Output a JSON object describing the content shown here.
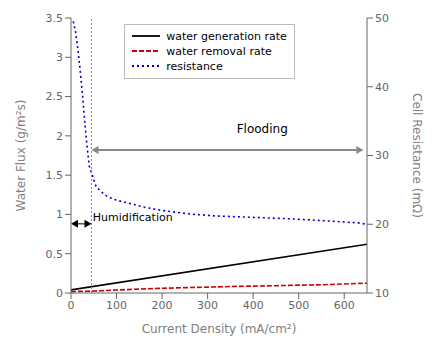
{
  "chart_data": {
    "type": "line",
    "xlabel": "Current Density (mA/cm²)",
    "ylabel": "Water Flux (g/m²s)",
    "y2label": "Cell Resistance (mΩ)",
    "xlim": [
      0,
      650
    ],
    "xticks": [
      0,
      100,
      200,
      300,
      400,
      500,
      600
    ],
    "ylim": [
      0,
      3.5
    ],
    "yticks": [
      0,
      0.5,
      1,
      1.5,
      2,
      2.5,
      3,
      3.5
    ],
    "y2lim": [
      10,
      50
    ],
    "y2ticks": [
      10,
      20,
      30,
      40,
      50
    ],
    "legend": "upper left",
    "series": [
      {
        "name": "water generation rate",
        "color": "#000000",
        "line_style": "solid",
        "x": [
          0,
          650
        ],
        "values": [
          0.04,
          0.62
        ]
      },
      {
        "name": "water removal rate",
        "color": "#cc0000",
        "line_style": "dashed",
        "x": [
          0,
          50,
          100,
          150,
          200,
          250,
          300,
          350,
          400,
          450,
          500,
          550,
          600,
          650
        ],
        "values": [
          0.018,
          0.025,
          0.038,
          0.05,
          0.06,
          0.068,
          0.075,
          0.082,
          0.088,
          0.093,
          0.1,
          0.105,
          0.115,
          0.125
        ]
      },
      {
        "name": "resistance",
        "color": "#0000cc",
        "line_style": "dotted",
        "axis": "y2",
        "x": [
          5,
          10,
          15,
          20,
          25,
          30,
          35,
          40,
          45,
          55,
          65,
          80,
          100,
          130,
          160,
          200,
          260,
          320,
          400,
          480,
          560,
          630,
          650
        ],
        "values": [
          49.5,
          48.0,
          45.5,
          42.5,
          39.0,
          35.0,
          31.5,
          28.5,
          27.5,
          25.5,
          24.8,
          24.0,
          23.5,
          23.0,
          22.5,
          22.0,
          21.5,
          21.2,
          21.0,
          20.8,
          20.5,
          20.2,
          20.0
        ]
      }
    ],
    "annotations": [
      {
        "type": "vline",
        "x": 45,
        "color": "#888888"
      },
      {
        "type": "arrow",
        "x": [
          45,
          642
        ],
        "y": 1.82,
        "color": "#888888"
      },
      {
        "type": "arrow",
        "x": [
          0,
          45
        ],
        "y": 0.88,
        "color": "#000000"
      },
      {
        "type": "text",
        "text": "Flooding",
        "x": 420,
        "y": 2.0,
        "position": "above"
      },
      {
        "type": "text",
        "text": "Humidification",
        "x": 48,
        "y": 1.05,
        "position": "below right"
      }
    ]
  }
}
